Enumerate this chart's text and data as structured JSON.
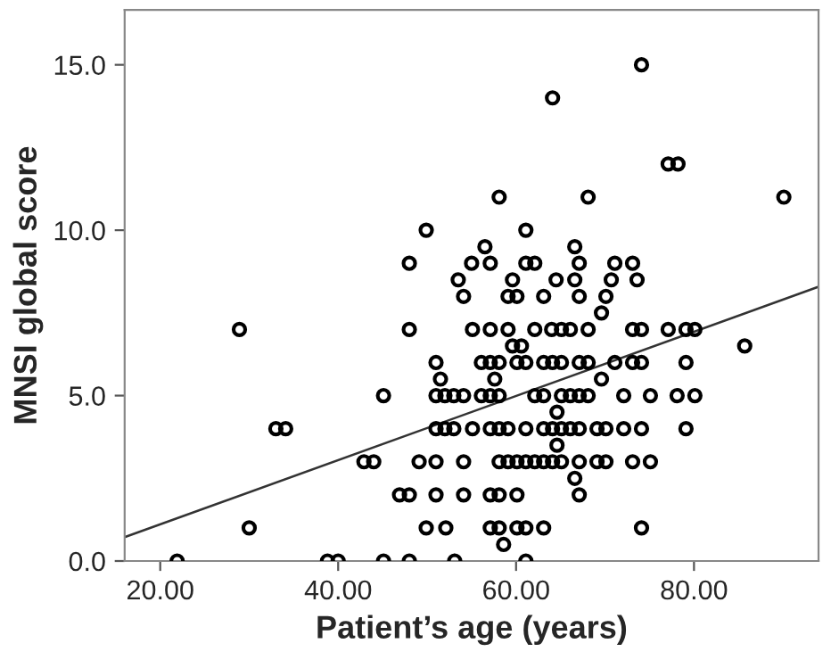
{
  "chart_data": {
    "type": "scatter",
    "xlabel": "Patient’s age (years)",
    "ylabel": "MNSI global score",
    "xlim": [
      16,
      94
    ],
    "ylim": [
      0,
      16.66
    ],
    "xticks": [
      {
        "value": 20,
        "label": "20.00"
      },
      {
        "value": 40,
        "label": "40.00"
      },
      {
        "value": 60,
        "label": "60.00"
      },
      {
        "value": 80,
        "label": "80.00"
      }
    ],
    "yticks": [
      {
        "value": 0,
        "label": "0.0"
      },
      {
        "value": 5,
        "label": "5.0"
      },
      {
        "value": 10,
        "label": "10.0"
      },
      {
        "value": 15,
        "label": "15.0"
      }
    ],
    "grid": false,
    "series": [
      {
        "marker": "circle",
        "color": "#000000",
        "x": [
          28.9,
          33.0,
          34.1,
          30.0,
          21.9,
          38.8,
          40.0,
          45.1,
          48.0,
          45.1,
          42.9,
          44.0,
          49.1,
          46.9,
          48.0,
          48.0,
          48.0,
          49.9,
          49.9,
          74.1,
          64.1,
          77.1,
          78.2,
          58.1,
          68.1,
          90.1,
          61.1,
          56.5,
          66.6,
          55.0,
          57.1,
          61.1,
          62.1,
          67.1,
          71.1,
          73.1,
          53.5,
          59.6,
          64.5,
          66.6,
          70.7,
          73.6,
          54.1,
          59.1,
          60.1,
          63.1,
          67.1,
          70.1,
          69.6,
          55.1,
          57.1,
          59.1,
          62.1,
          64.0,
          65.1,
          66.1,
          68.1,
          73.1,
          74.1,
          77.1,
          79.1,
          80.1,
          59.6,
          60.6,
          85.7,
          51.0,
          56.1,
          57.1,
          58.1,
          60.1,
          61.1,
          63.1,
          64.1,
          65.1,
          67.1,
          68.1,
          71.1,
          73.1,
          74.1,
          79.1,
          51.5,
          57.6,
          69.6,
          51.0,
          52.0,
          53.0,
          54.1,
          56.1,
          57.1,
          58.1,
          62.1,
          63.1,
          65.1,
          66.1,
          67.1,
          68.1,
          72.1,
          75.1,
          78.1,
          80.1,
          64.6,
          51.0,
          52.0,
          53.0,
          55.1,
          57.1,
          58.1,
          59.1,
          61.1,
          63.1,
          64.1,
          65.1,
          66.1,
          67.1,
          69.1,
          70.1,
          72.1,
          74.1,
          79.1,
          64.6,
          51.0,
          54.1,
          58.1,
          59.1,
          60.1,
          61.1,
          62.1,
          63.1,
          64.1,
          65.1,
          67.1,
          69.1,
          70.1,
          73.1,
          75.1,
          66.6,
          51.0,
          54.1,
          57.1,
          58.1,
          60.1,
          67.1,
          52.1,
          57.1,
          58.1,
          60.1,
          61.1,
          63.1,
          74.1,
          58.6,
          53.1,
          61.1
        ],
        "values": [
          7,
          4,
          4,
          1,
          0,
          0,
          0,
          0,
          0,
          5,
          3,
          3,
          3,
          2,
          2,
          9,
          7,
          10,
          1,
          15,
          14,
          12,
          12,
          11,
          11,
          11,
          10,
          9.5,
          9.5,
          9,
          9,
          9,
          9,
          9,
          9,
          9,
          8.5,
          8.5,
          8.5,
          8.5,
          8.5,
          8.5,
          8,
          8,
          8,
          8,
          8,
          8,
          7.5,
          7,
          7,
          7,
          7,
          7,
          7,
          7,
          7,
          7,
          7,
          7,
          7,
          7,
          6.5,
          6.5,
          6.5,
          6,
          6,
          6,
          6,
          6,
          6,
          6,
          6,
          6,
          6,
          6,
          6,
          6,
          6,
          6,
          5.5,
          5.5,
          5.5,
          5,
          5,
          5,
          5,
          5,
          5,
          5,
          5,
          5,
          5,
          5,
          5,
          5,
          5,
          5,
          5,
          5,
          4.5,
          4,
          4,
          4,
          4,
          4,
          4,
          4,
          4,
          4,
          4,
          4,
          4,
          4,
          4,
          4,
          4,
          4,
          4,
          3.5,
          3,
          3,
          3,
          3,
          3,
          3,
          3,
          3,
          3,
          3,
          3,
          3,
          3,
          3,
          3,
          2.5,
          2,
          2,
          2,
          2,
          2,
          2,
          1,
          1,
          1,
          1,
          1,
          1,
          1,
          0.5,
          0,
          0
        ]
      },
      {
        "type": "line",
        "marker": "none",
        "color": "#333333",
        "x": [
          16,
          94
        ],
        "values": [
          0.72,
          8.29
        ]
      }
    ]
  }
}
